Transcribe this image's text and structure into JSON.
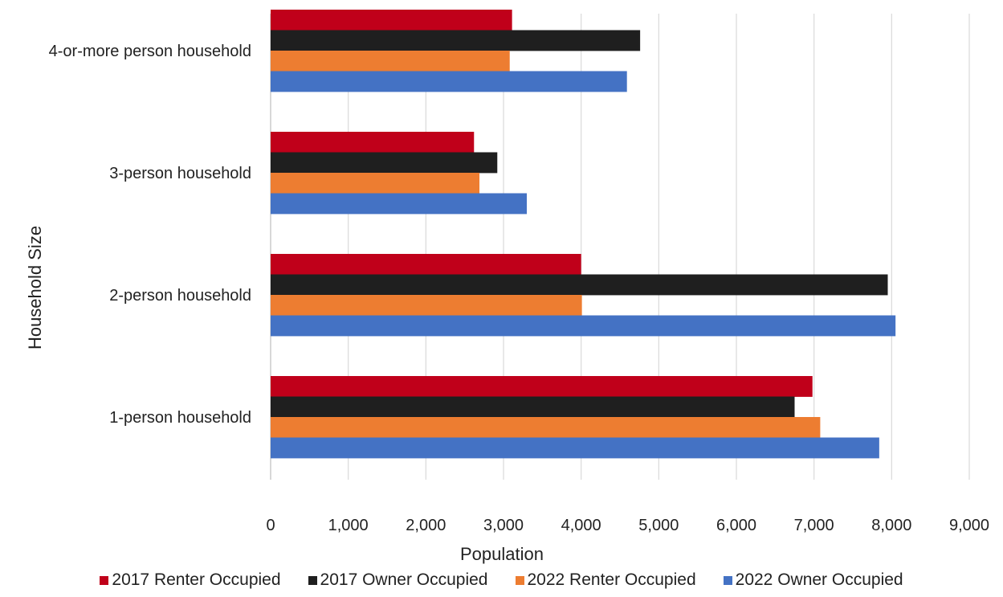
{
  "chart_data": {
    "type": "bar",
    "orientation": "horizontal",
    "title": "",
    "xlabel": "Population",
    "ylabel": "Household Size",
    "xlim": [
      0,
      9000
    ],
    "xticks": [
      0,
      1000,
      2000,
      3000,
      4000,
      5000,
      6000,
      7000,
      8000,
      9000
    ],
    "xtick_labels": [
      "0",
      "1,000",
      "2,000",
      "3,000",
      "4,000",
      "5,000",
      "6,000",
      "7,000",
      "8,000",
      "9,000"
    ],
    "grid": "vertical",
    "legend_position": "bottom",
    "categories": [
      "1-person household",
      "2-person household",
      "3-person household",
      "4-or-more person household"
    ],
    "series": [
      {
        "name": "2017 Renter Occupied",
        "color": "#c0001a",
        "values": [
          6980,
          4000,
          2620,
          3110
        ]
      },
      {
        "name": "2017 Owner Occupied",
        "color": "#1f1f1f",
        "values": [
          6750,
          7950,
          2920,
          4760
        ]
      },
      {
        "name": "2022 Renter Occupied",
        "color": "#ed7d31",
        "values": [
          7080,
          4010,
          2690,
          3080
        ]
      },
      {
        "name": "2022 Owner Occupied",
        "color": "#4472c4",
        "values": [
          7840,
          8050,
          3300,
          4590
        ]
      }
    ]
  }
}
